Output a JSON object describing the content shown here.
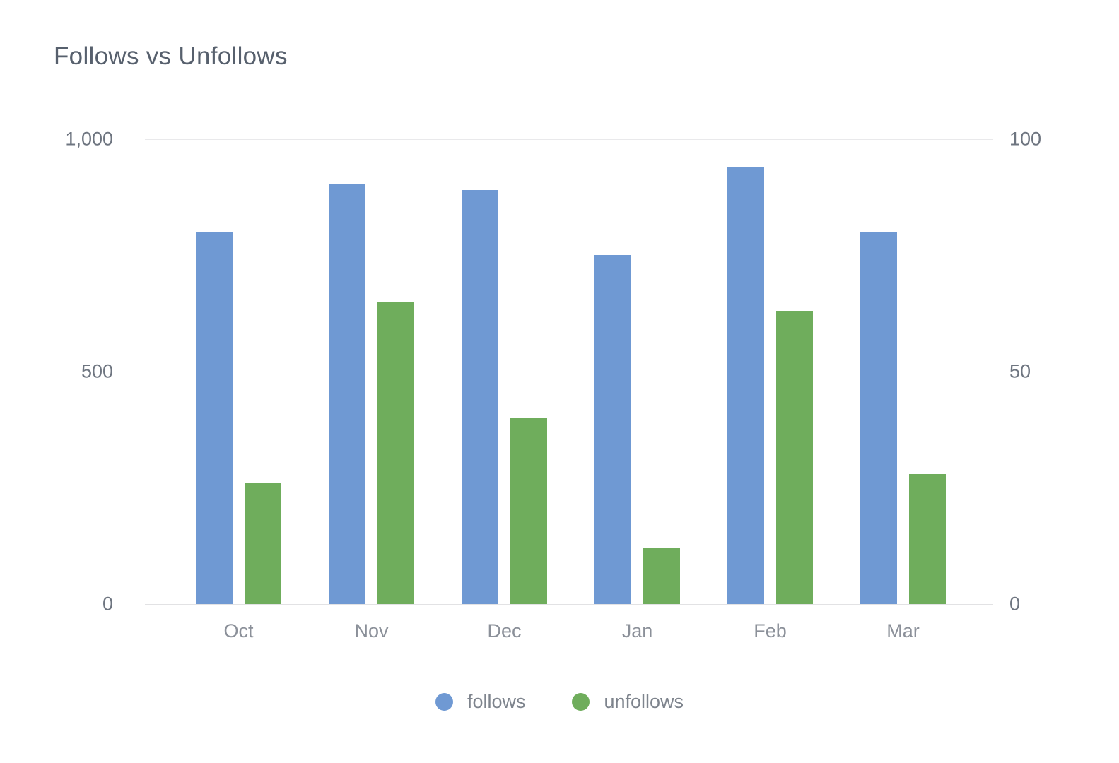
{
  "title": "Follows vs Unfollows",
  "chart_data": {
    "type": "bar",
    "title": "Follows vs Unfollows",
    "categories": [
      "Oct",
      "Nov",
      "Dec",
      "Jan",
      "Feb",
      "Mar"
    ],
    "series": [
      {
        "name": "follows",
        "axis": "left",
        "color": "#6f99d3",
        "values": [
          800,
          905,
          890,
          750,
          940,
          800
        ]
      },
      {
        "name": "unfollows",
        "axis": "right",
        "color": "#6fad5c",
        "values": [
          26,
          65,
          40,
          12,
          63,
          28
        ]
      }
    ],
    "left_axis": {
      "ticks": [
        "1,000",
        "500",
        "0"
      ],
      "min": 0,
      "max": 1000
    },
    "right_axis": {
      "ticks": [
        "100",
        "50",
        "0"
      ],
      "min": 0,
      "max": 100
    },
    "grid": true,
    "legend_position": "bottom"
  }
}
